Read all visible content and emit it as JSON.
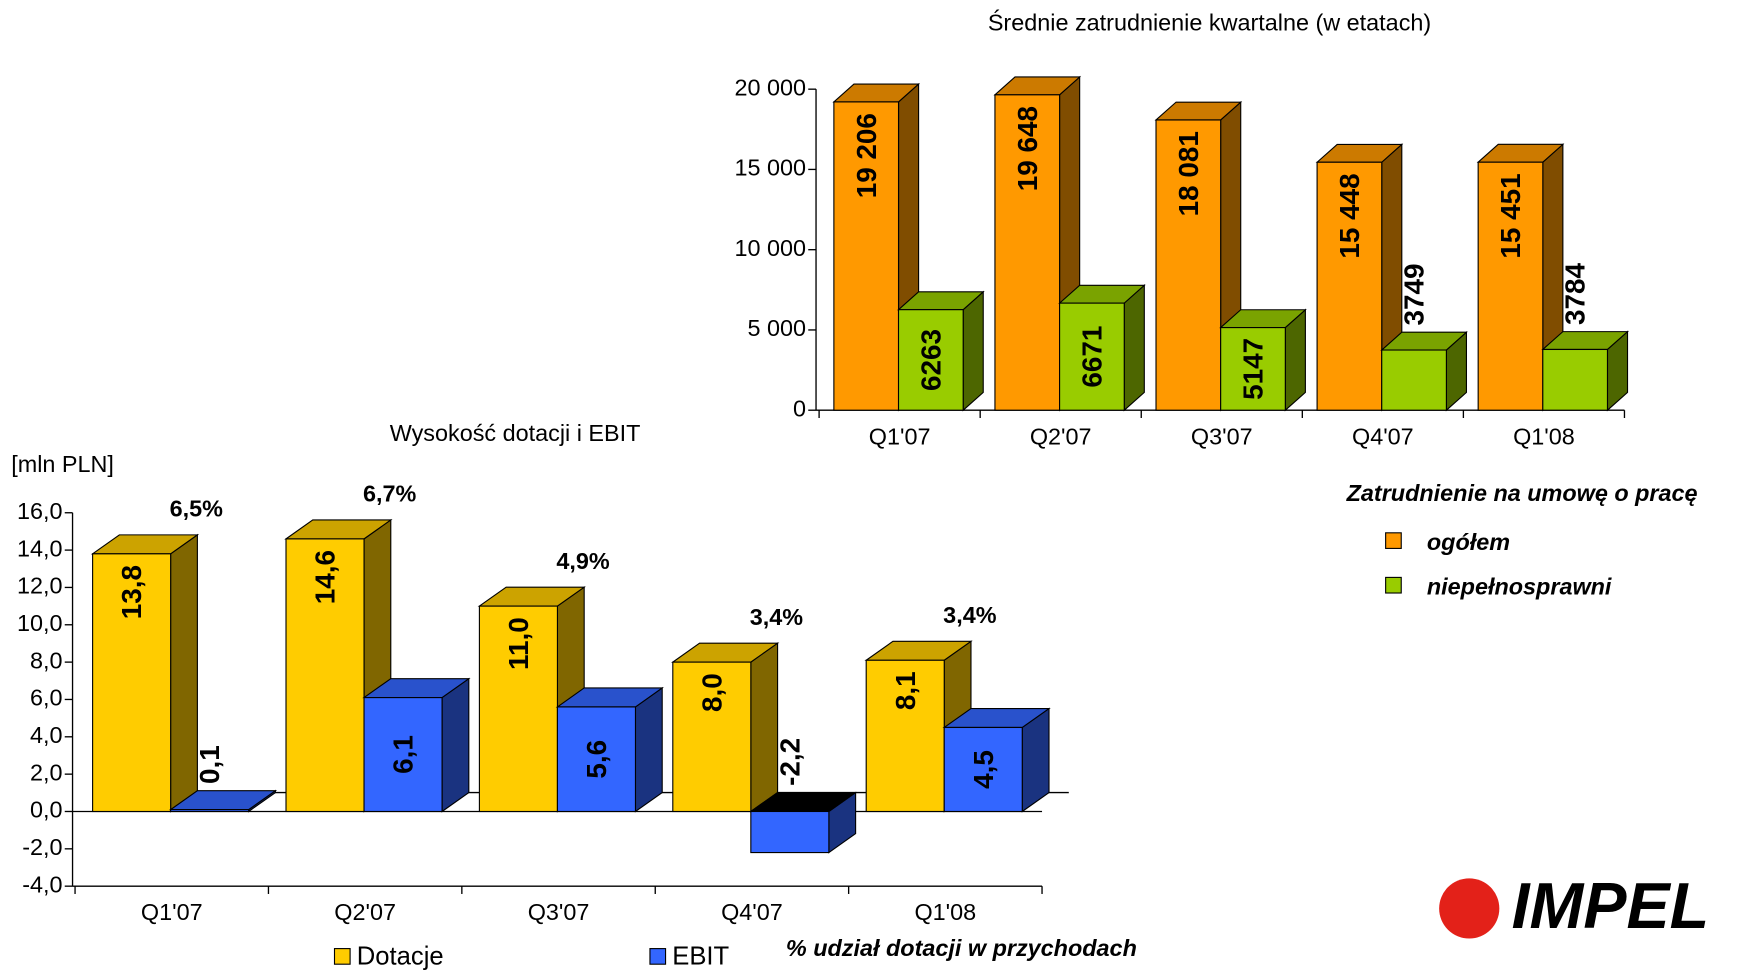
{
  "chart_data": [
    {
      "type": "bar",
      "title": "Średnie zatrudnienie kwartalne (w etatach)",
      "legend_title": "Zatrudnienie na umowę o pracę",
      "categories": [
        "Q1'07",
        "Q2'07",
        "Q3'07",
        "Q4'07",
        "Q1'08"
      ],
      "series": [
        {
          "name": "ogółem",
          "color": "#ff9900",
          "values": [
            19206,
            19648,
            18081,
            15448,
            15451
          ],
          "value_labels": [
            "19 206",
            "19 648",
            "18 081",
            "15 448",
            "15 451"
          ]
        },
        {
          "name": "niepełnosprawni",
          "color": "#99cc00",
          "values": [
            6263,
            6671,
            5147,
            3749,
            3784
          ]
        }
      ],
      "ylim": [
        0,
        20000
      ],
      "yticks": [
        0,
        {
          "value": 5000,
          "label": "5 000"
        },
        {
          "value": 10000,
          "label": "10 000"
        },
        {
          "value": 15000,
          "label": "15 000"
        },
        {
          "value": 20000,
          "label": "20 000"
        }
      ],
      "legend": "right"
    },
    {
      "type": "bar",
      "title": "Wysokość dotacji i EBIT",
      "y_label": "[mln PLN]",
      "categories": [
        "Q1'07",
        "Q2'07",
        "Q3'07",
        "Q4'07",
        "Q1'08"
      ],
      "series": [
        {
          "name": "Dotacje",
          "color": "#ffcc00",
          "values": [
            13.8,
            14.6,
            11.0,
            8.0,
            8.1
          ],
          "value_labels": [
            "13,8",
            "14,6",
            "11,0",
            "8,0",
            "8,1"
          ]
        },
        {
          "name": "EBIT",
          "color": "#3366ff",
          "values": [
            0.1,
            6.1,
            5.6,
            -2.2,
            4.5
          ],
          "value_labels": [
            "0,1",
            "6,1",
            "5,6",
            "-2,2",
            "4,5"
          ]
        }
      ],
      "share": {
        "name": "% udział dotacji w przychodach",
        "values": [
          6.5,
          6.7,
          4.9,
          3.4,
          3.4
        ],
        "value_labels": [
          "6,5%",
          "6,7%",
          "4,9%",
          "3,4%",
          "3,4%"
        ]
      },
      "ylim": [
        -4,
        16
      ],
      "yticks": [
        {
          "value": -4,
          "label": "-4,0"
        },
        {
          "value": -2,
          "label": "-2,0"
        },
        {
          "value": 0,
          "label": "0,0"
        },
        {
          "value": 2,
          "label": "2,0"
        },
        {
          "value": 4,
          "label": "4,0"
        },
        {
          "value": 6,
          "label": "6,0"
        },
        {
          "value": 8,
          "label": "8,0"
        },
        {
          "value": 10,
          "label": "10,0"
        },
        {
          "value": 12,
          "label": "12,0"
        },
        {
          "value": 14,
          "label": "14,0"
        },
        {
          "value": 16,
          "label": "16,0"
        }
      ],
      "legend": "bottom"
    }
  ],
  "logo": "IMPEL"
}
